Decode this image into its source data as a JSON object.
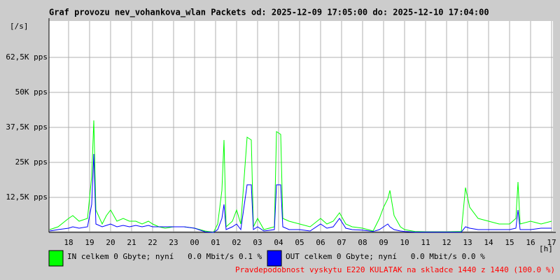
{
  "chart_data": {
    "type": "line",
    "title": "Graf provozu nev_vohankova_wlan Packets od: 2025-12-09 17:05:00 do: 2025-12-10 17:04:00",
    "y_label": "[/s]",
    "x_label": "[h]",
    "x": [
      17.1,
      17.5,
      18.0,
      18.2,
      18.5,
      18.9,
      19.1,
      19.2,
      19.3,
      19.6,
      19.8,
      20.0,
      20.3,
      20.6,
      20.9,
      21.2,
      21.5,
      21.8,
      22.0,
      22.3,
      22.6,
      23.0,
      23.5,
      24.0,
      24.5,
      24.9,
      25.1,
      25.3,
      25.4,
      25.5,
      25.8,
      26.0,
      26.2,
      26.5,
      26.7,
      26.8,
      27.0,
      27.3,
      27.8,
      27.9,
      28.1,
      28.2,
      28.5,
      29.0,
      29.5,
      30.0,
      30.3,
      30.6,
      30.9,
      31.2,
      31.5,
      32.0,
      32.5,
      32.8,
      33.0,
      33.2,
      33.3,
      33.5,
      33.8,
      34.0,
      34.5,
      35.0,
      35.5,
      36.0,
      36.7,
      36.9,
      37.1,
      37.5,
      38.0,
      38.5,
      39.0,
      39.3,
      39.4,
      39.5,
      40.0,
      40.5,
      41.0
    ],
    "series": [
      {
        "name": "IN celkem 0 Gbyte; nyní   0.0 Mbit/s 0.1 %",
        "color": "#00ff00",
        "values": [
          1000,
          2000,
          5000,
          6000,
          4000,
          5000,
          20000,
          40000,
          8000,
          3000,
          6000,
          8000,
          4000,
          5000,
          4000,
          4000,
          3000,
          4000,
          3000,
          2000,
          1500,
          2000,
          2000,
          1500,
          500,
          0,
          3000,
          15000,
          33000,
          2000,
          4000,
          8000,
          3000,
          34000,
          33000,
          2000,
          5000,
          1000,
          2000,
          36000,
          35000,
          5000,
          4000,
          3000,
          2000,
          5000,
          3000,
          4000,
          7000,
          3000,
          2000,
          1500,
          500,
          5000,
          9000,
          12000,
          15000,
          6000,
          2000,
          1000,
          300,
          200,
          200,
          200,
          300,
          16000,
          9000,
          5000,
          4000,
          3000,
          3000,
          5000,
          18000,
          3000,
          4000,
          3000,
          4000
        ]
      },
      {
        "name": "OUT celkem 0 Gbyte; nyní   0.0 Mbit/s 0.0 %",
        "color": "#0000ff",
        "values": [
          500,
          1000,
          1500,
          2000,
          1500,
          2000,
          10000,
          28000,
          3000,
          2000,
          2500,
          3000,
          2000,
          2500,
          2000,
          2500,
          2000,
          2500,
          2000,
          2000,
          2000,
          2000,
          2000,
          1500,
          200,
          0,
          1000,
          5000,
          10000,
          1000,
          2000,
          3000,
          1000,
          17000,
          17000,
          1000,
          2000,
          500,
          1000,
          17000,
          17000,
          2000,
          1000,
          1000,
          500,
          3000,
          1500,
          2000,
          5000,
          1500,
          1000,
          800,
          300,
          1000,
          2000,
          3000,
          2000,
          1000,
          500,
          300,
          100,
          100,
          100,
          100,
          100,
          2000,
          1500,
          1000,
          1000,
          1000,
          1000,
          1500,
          8000,
          1000,
          1000,
          1500,
          1500
        ]
      }
    ],
    "xlim": [
      17.067,
      41.067
    ],
    "xticks": [
      {
        "value": 18,
        "label": "18"
      },
      {
        "value": 19,
        "label": "19"
      },
      {
        "value": 20,
        "label": "20"
      },
      {
        "value": 21,
        "label": "21"
      },
      {
        "value": 22,
        "label": "22"
      },
      {
        "value": 23,
        "label": "23"
      },
      {
        "value": 24,
        "label": "00"
      },
      {
        "value": 25,
        "label": "01"
      },
      {
        "value": 26,
        "label": "02"
      },
      {
        "value": 27,
        "label": "03"
      },
      {
        "value": 28,
        "label": "04"
      },
      {
        "value": 29,
        "label": "05"
      },
      {
        "value": 30,
        "label": "06"
      },
      {
        "value": 31,
        "label": "07"
      },
      {
        "value": 32,
        "label": "08"
      },
      {
        "value": 33,
        "label": "09"
      },
      {
        "value": 34,
        "label": "10"
      },
      {
        "value": 35,
        "label": "11"
      },
      {
        "value": 36,
        "label": "12"
      },
      {
        "value": 37,
        "label": "13"
      },
      {
        "value": 38,
        "label": "14"
      },
      {
        "value": 39,
        "label": "15"
      },
      {
        "value": 40,
        "label": "16"
      },
      {
        "value": 41,
        "label": "17"
      }
    ],
    "ylim": [
      0,
      75000
    ],
    "yticks": [
      {
        "value": 12500,
        "label": "12,5K pps"
      },
      {
        "value": 25000,
        "label": "25K pps"
      },
      {
        "value": 37500,
        "label": "37,5K pps"
      },
      {
        "value": 50000,
        "label": "50K pps"
      },
      {
        "value": 62500,
        "label": "62,5K pps"
      }
    ],
    "grid": true,
    "note": "Pravdepodobnost vyskytu E220 KULATAK na skladce 1440 z 1440 (100.0 %)",
    "note_color": "#ff0000"
  }
}
